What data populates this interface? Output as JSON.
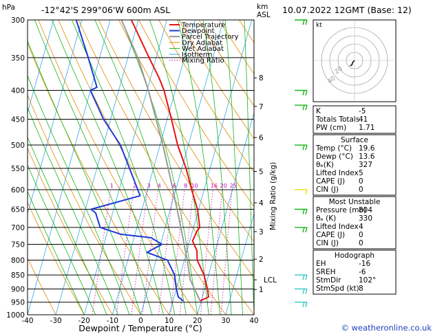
{
  "header": {
    "location": "-12°42'S 299°06'W 600m ASL",
    "datetime": "10.07.2022 12GMT (Base: 12)"
  },
  "axes": {
    "y_unit": "hPa",
    "km_label": "km",
    "asl_label": "ASL",
    "xlabel": "Dewpoint / Temperature (°C)",
    "mixing_ratio_label": "Mixing Ratio (g/kg)",
    "lcl_label": "LCL"
  },
  "copyright": "© weatheronline.co.uk",
  "chart_data": [
    {
      "type": "line",
      "subtype": "skew-t log-p",
      "title": "-12°42'S 299°06'W 600m ASL",
      "xlabel": "Dewpoint / Temperature (°C)",
      "ylabel": "hPa",
      "xlim": [
        -40,
        40
      ],
      "ylim": [
        1000,
        300
      ],
      "y_scale": "log",
      "x_ticks": [
        -40,
        -30,
        -20,
        -10,
        0,
        10,
        20,
        30,
        40
      ],
      "p_levels": [
        300,
        350,
        400,
        450,
        500,
        550,
        600,
        650,
        700,
        750,
        800,
        850,
        900,
        950,
        1000
      ],
      "km_ticks": [
        {
          "label": "8",
          "p": 380
        },
        {
          "label": "7",
          "p": 427
        },
        {
          "label": "6",
          "p": 485
        },
        {
          "label": "5",
          "p": 557
        },
        {
          "label": "4",
          "p": 633
        },
        {
          "label": "3",
          "p": 712
        },
        {
          "label": "2",
          "p": 797
        },
        {
          "label": "1",
          "p": 902
        }
      ],
      "lcl_p": 867,
      "mixing_ratio_values": [
        "1",
        "2",
        "3",
        "4",
        "6",
        "8",
        "10",
        "16",
        "20",
        "25"
      ],
      "mixing_ratio_label_p": 590,
      "legend": [
        "Temperature",
        "Dewpoint",
        "Parcel Trajectory",
        "Dry Adiabat",
        "Wet Adiabat",
        "Isotherm",
        "Mixing Ratio"
      ],
      "legend_position": "top-left",
      "colors": {
        "temperature": "#e81010",
        "dewpoint": "#1a3ad6",
        "parcel": "#999999",
        "dry_adiabat": "#e08a00",
        "wet_adiabat": "#14b414",
        "isotherm": "#30a8e8",
        "mixing_ratio": "#cc00aa"
      },
      "series": [
        {
          "name": "Temperature",
          "points": [
            [
              945,
              19.6
            ],
            [
              930,
              22.2
            ],
            [
              900,
              21.0
            ],
            [
              850,
              18.4
            ],
            [
              800,
              14.5
            ],
            [
              770,
              13.5
            ],
            [
              740,
              11.0
            ],
            [
              710,
              11.6
            ],
            [
              700,
              12.2
            ],
            [
              650,
              9.6
            ],
            [
              600,
              5.6
            ],
            [
              550,
              1.5
            ],
            [
              500,
              -3.8
            ],
            [
              450,
              -8.5
            ],
            [
              400,
              -14.0
            ],
            [
              380,
              -17.0
            ],
            [
              350,
              -22.5
            ],
            [
              300,
              -32.5
            ]
          ]
        },
        {
          "name": "Dewpoint",
          "points": [
            [
              945,
              13.6
            ],
            [
              930,
              11.5
            ],
            [
              900,
              10.0
            ],
            [
              850,
              8.0
            ],
            [
              800,
              4.0
            ],
            [
              775,
              -4.0
            ],
            [
              750,
              0.5
            ],
            [
              730,
              -4.0
            ],
            [
              720,
              -15.0
            ],
            [
              700,
              -23.0
            ],
            [
              660,
              -26.0
            ],
            [
              650,
              -28.0
            ],
            [
              615,
              -12.0
            ],
            [
              500,
              -24.0
            ],
            [
              450,
              -32.5
            ],
            [
              400,
              -40.0
            ],
            [
              395,
              -38.0
            ],
            [
              350,
              -44.0
            ],
            [
              300,
              -52.0
            ]
          ]
        },
        {
          "name": "Parcel Trajectory",
          "points": [
            [
              945,
              19.6
            ],
            [
              867,
              14.0
            ],
            [
              800,
              11.0
            ],
            [
              700,
              5.5
            ],
            [
              600,
              -1.0
            ],
            [
              500,
              -9.0
            ],
            [
              400,
              -19.5
            ],
            [
              350,
              -26.5
            ],
            [
              300,
              -36.0
            ]
          ]
        }
      ]
    },
    {
      "type": "scatter",
      "subtype": "hodograph",
      "label": "kt",
      "ring_labels": [
        "20",
        "40"
      ],
      "points": [
        [
          0,
          0
        ],
        [
          -2,
          -2
        ],
        [
          -3,
          -5
        ],
        [
          -5,
          -6
        ]
      ]
    },
    {
      "type": "table",
      "sections": [
        {
          "title": "",
          "rows": [
            [
              "K",
              "-5"
            ],
            [
              "Totals Totals",
              "41"
            ],
            [
              "PW (cm)",
              "1.71"
            ]
          ]
        },
        {
          "title": "Surface",
          "rows": [
            [
              "Temp (°C)",
              "19.6"
            ],
            [
              "Dewp (°C)",
              "13.6"
            ],
            [
              "θₑ(K)",
              "327"
            ],
            [
              "Lifted Index",
              "5"
            ],
            [
              "CAPE (J)",
              "0"
            ],
            [
              "CIN (J)",
              "0"
            ]
          ]
        },
        {
          "title": "Most Unstable",
          "rows": [
            [
              "Pressure (mb)",
              "804"
            ],
            [
              "θₑ (K)",
              "330"
            ],
            [
              "Lifted Index",
              "4"
            ],
            [
              "CAPE (J)",
              "0"
            ],
            [
              "CIN (J)",
              "0"
            ]
          ]
        },
        {
          "title": "Hodograph",
          "rows": [
            [
              "EH",
              "-16"
            ],
            [
              "SREH",
              "-6"
            ],
            [
              "StmDir",
              "102°"
            ],
            [
              "StmSpd (kt)",
              "8"
            ]
          ]
        }
      ]
    }
  ]
}
